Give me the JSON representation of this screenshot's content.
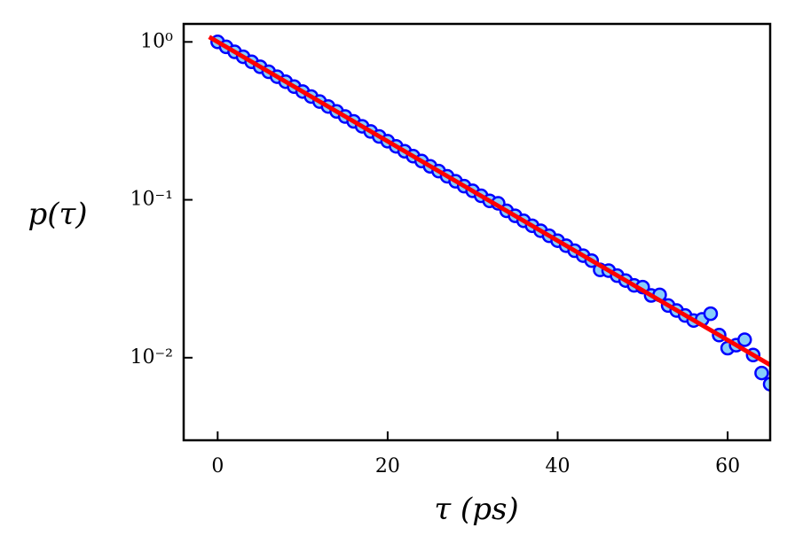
{
  "chart_data": {
    "type": "scatter",
    "xlabel": "τ (ps)",
    "ylabel": "p(τ)",
    "xlim": [
      -4,
      65
    ],
    "xticks": [
      0,
      20,
      40,
      60
    ],
    "ylim": [
      0.003,
      1.3
    ],
    "ylog": true,
    "yticks": [
      {
        "value": 0.01,
        "label": "10⁻²"
      },
      {
        "value": 0.1,
        "label": "10⁻¹"
      },
      {
        "value": 1,
        "label": "10⁰"
      }
    ],
    "series": [
      {
        "type": "scatter",
        "color": "#87cefa",
        "edgecolor": "#0000ff",
        "x": [
          0,
          1,
          2,
          3,
          4,
          5,
          6,
          7,
          8,
          9,
          10,
          11,
          12,
          13,
          14,
          15,
          16,
          17,
          18,
          19,
          20,
          21,
          22,
          23,
          24,
          25,
          26,
          27,
          28,
          29,
          30,
          31,
          32,
          33,
          34,
          35,
          36,
          37,
          38,
          39,
          40,
          41,
          42,
          43,
          44,
          45,
          46,
          47,
          48,
          49,
          50,
          51,
          52,
          53,
          54,
          55,
          56,
          57,
          58,
          59,
          60,
          61,
          62,
          63,
          64,
          65
        ],
        "values": [
          1.0,
          0.93,
          0.865,
          0.805,
          0.748,
          0.696,
          0.647,
          0.602,
          0.56,
          0.521,
          0.485,
          0.451,
          0.419,
          0.39,
          0.363,
          0.337,
          0.314,
          0.292,
          0.271,
          0.252,
          0.235,
          0.218,
          0.203,
          0.189,
          0.176,
          0.163,
          0.152,
          0.141,
          0.131,
          0.122,
          0.114,
          0.106,
          0.0984,
          0.095,
          0.0851,
          0.0792,
          0.0736,
          0.0685,
          0.0637,
          0.0592,
          0.0551,
          0.0512,
          0.0476,
          0.0443,
          0.0412,
          0.036,
          0.0356,
          0.0331,
          0.0308,
          0.0287,
          0.028,
          0.0248,
          0.025,
          0.0214,
          0.0199,
          0.0185,
          0.0172,
          0.0175,
          0.019,
          0.0139,
          0.0115,
          0.012,
          0.013,
          0.0104,
          0.008,
          0.0068
        ]
      },
      {
        "type": "line",
        "color": "#ff0000",
        "x": [
          -1,
          65
        ],
        "values": [
          1.075,
          0.009
        ]
      }
    ]
  }
}
